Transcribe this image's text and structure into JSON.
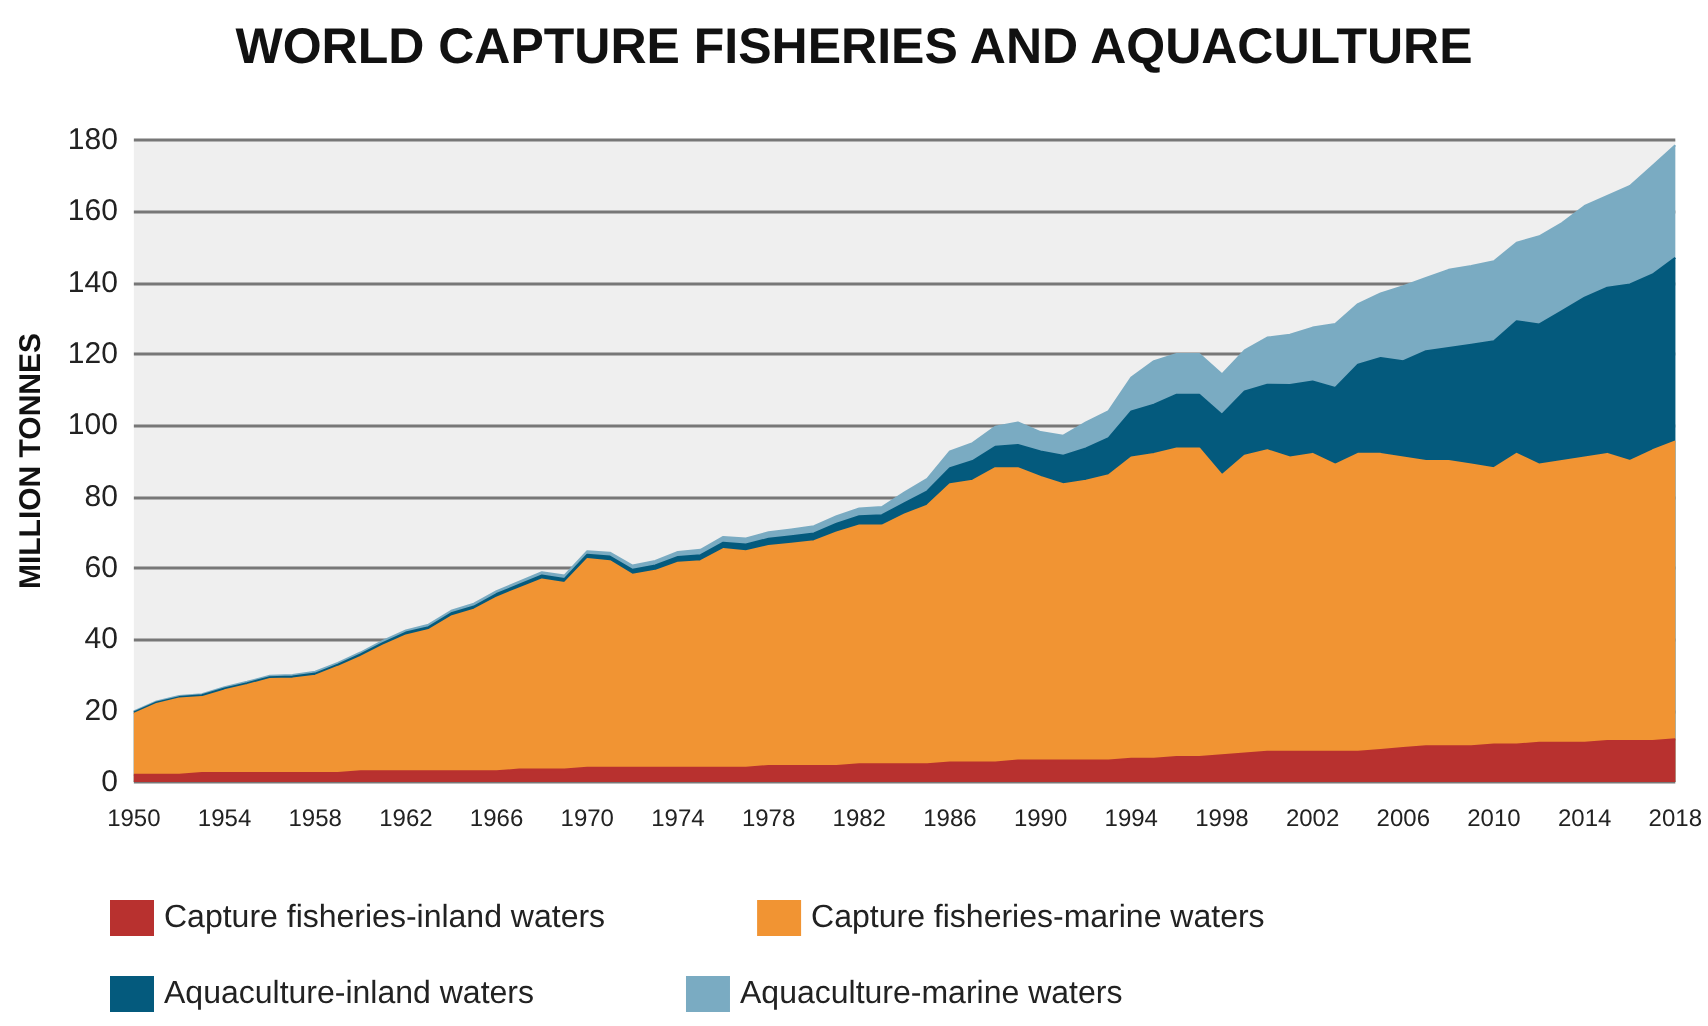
{
  "chart_data": {
    "type": "area",
    "title": "WORLD CAPTURE FISHERIES AND AQUACULTURE",
    "ylabel": "MILLION TONNES",
    "stacked": true,
    "x": [
      1950,
      1951,
      1952,
      1953,
      1954,
      1955,
      1956,
      1957,
      1958,
      1959,
      1960,
      1961,
      1962,
      1963,
      1964,
      1965,
      1966,
      1967,
      1968,
      1969,
      1970,
      1971,
      1972,
      1973,
      1974,
      1975,
      1976,
      1977,
      1978,
      1979,
      1980,
      1981,
      1982,
      1983,
      1984,
      1985,
      1986,
      1987,
      1988,
      1989,
      1990,
      1991,
      1992,
      1993,
      1994,
      1995,
      1996,
      1997,
      1998,
      1999,
      2000,
      2001,
      2002,
      2003,
      2004,
      2005,
      2006,
      2007,
      2008,
      2009,
      2010,
      2011,
      2012,
      2013,
      2014,
      2015,
      2016,
      2017,
      2018
    ],
    "series": [
      {
        "name": "Capture fisheries-inland waters",
        "color": "#b8312f",
        "values": [
          2,
          2,
          2,
          2.5,
          2.5,
          2.5,
          2.5,
          2.5,
          2.5,
          2.5,
          3,
          3,
          3,
          3,
          3,
          3,
          3,
          3.5,
          3.5,
          3.5,
          4,
          4,
          4,
          4,
          4,
          4,
          4,
          4,
          4.5,
          4.5,
          4.5,
          4.5,
          5,
          5,
          5,
          5,
          5.5,
          5.5,
          5.5,
          6,
          6,
          6,
          6,
          6,
          6.5,
          6.5,
          7,
          7,
          7.5,
          8,
          8.5,
          8.5,
          8.5,
          8.5,
          8.5,
          9,
          9.5,
          10,
          10,
          10,
          10.5,
          10.5,
          11,
          11,
          11,
          11.5,
          11.5,
          11.5,
          12
        ]
      },
      {
        "name": "Capture fisheries-marine waters",
        "color": "#f19433",
        "values": [
          17.1,
          19.9,
          21.4,
          21.3,
          23.2,
          24.7,
          26.4,
          26.5,
          27.3,
          29.8,
          32.1,
          35.3,
          38.1,
          39.6,
          43.4,
          45.3,
          48.7,
          50.8,
          53.3,
          52.3,
          58.5,
          57.9,
          54.1,
          55.2,
          57.5,
          57.9,
          61.3,
          60.7,
          61.7,
          62.3,
          63,
          65.5,
          66.9,
          66.9,
          70,
          72.5,
          78,
          79,
          82.5,
          82,
          79.5,
          77.5,
          78.5,
          80,
          84.5,
          85.5,
          86.5,
          86.5,
          78.5,
          83.5,
          84.5,
          82.5,
          83.5,
          80.5,
          83.5,
          83,
          81.5,
          80,
          80,
          79,
          77.5,
          81.5,
          78,
          79,
          80,
          80.5,
          78.5,
          81.5,
          83.5
        ]
      },
      {
        "name": "Aquaculture-inland waters",
        "color": "#045a7d",
        "values": [
          0.4,
          0.4,
          0.4,
          0.5,
          0.5,
          0.5,
          0.5,
          0.6,
          0.6,
          0.6,
          0.7,
          0.7,
          0.8,
          0.8,
          0.9,
          0.9,
          1,
          1,
          1.1,
          1.1,
          1.2,
          1.3,
          1.4,
          1.5,
          1.6,
          1.7,
          1.8,
          1.9,
          2,
          2.1,
          2.2,
          2.4,
          2.6,
          2.9,
          3.2,
          4,
          4.5,
          5.5,
          6,
          6.5,
          7.2,
          8,
          9,
          10.4,
          12.9,
          13.8,
          15.1,
          15.1,
          17,
          18,
          18.4,
          20.3,
          20.3,
          21.5,
          25,
          26.9,
          27,
          30.8,
          31.7,
          33.6,
          35.6,
          37.2,
          39.3,
          42,
          44.8,
          46.6,
          49.5,
          49.3,
          51.5
        ]
      },
      {
        "name": "Aquaculture-marine waters",
        "color": "#7aabc2",
        "values": [
          0.3,
          0.3,
          0.3,
          0.3,
          0.4,
          0.4,
          0.4,
          0.4,
          0.5,
          0.5,
          0.5,
          0.6,
          0.6,
          0.7,
          0.7,
          0.8,
          0.8,
          0.9,
          0.9,
          1,
          1,
          1.1,
          1.2,
          1.3,
          1.4,
          1.5,
          1.6,
          1.7,
          1.8,
          1.9,
          2,
          2.1,
          2.2,
          2.3,
          3,
          3.5,
          4.7,
          5,
          5.6,
          6.3,
          5.4,
          5.6,
          7.3,
          7.6,
          9.5,
          12.2,
          11.4,
          11.4,
          11.3,
          11.5,
          13.2,
          14.1,
          15.1,
          17.9,
          17,
          18.1,
          21,
          20.5,
          21.9,
          22.1,
          22.4,
          22,
          24.7,
          24.7,
          25.7,
          25.7,
          27.6,
          30.5,
          31.5
        ]
      }
    ],
    "xlim": [
      1950,
      2018
    ],
    "xticks": [
      1950,
      1954,
      1958,
      1962,
      1966,
      1970,
      1974,
      1978,
      1982,
      1986,
      1990,
      1994,
      1998,
      2002,
      2006,
      2010,
      2014,
      2018
    ],
    "ylim": [
      0,
      180
    ],
    "yticks": [
      0,
      20,
      40,
      60,
      80,
      100,
      120,
      140,
      160,
      180
    ],
    "grid": "y",
    "legend": "bottom",
    "marker": "none"
  }
}
